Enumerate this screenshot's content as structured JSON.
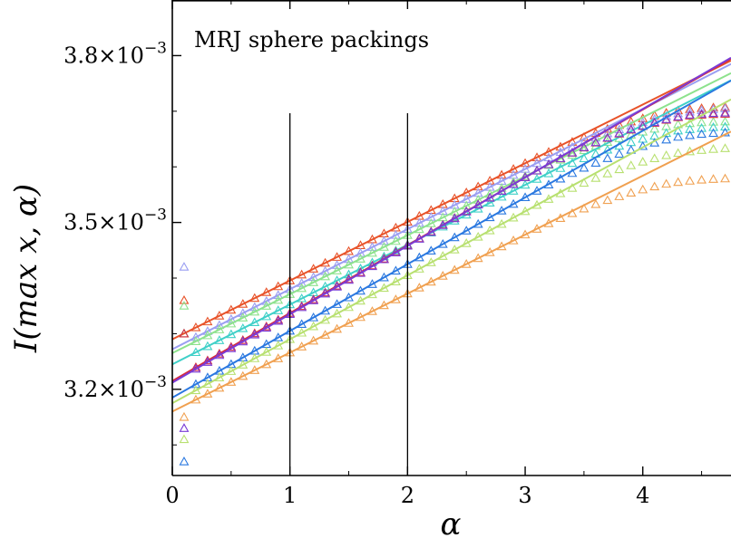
{
  "chart_data": {
    "type": "scatter",
    "annotation": "MRJ sphere packings",
    "xlabel": "α",
    "ylabel": "I(max x, α)",
    "xlim": [
      0,
      4.75
    ],
    "ylim": [
      3.045,
      3.9
    ],
    "xticks": [
      0,
      1,
      2,
      3,
      4
    ],
    "xtick_labels": [
      "0",
      "1",
      "2",
      "3",
      "4"
    ],
    "yticks": [
      3.2,
      3.5,
      3.8
    ],
    "ytick_mantissas": [
      "3.2",
      "3.5",
      "3.8"
    ],
    "ytick_exponent": "−3",
    "ytick_times": "×10",
    "y_scale_factor": "1e-3",
    "grid": false,
    "vertical_lines": [
      1,
      2
    ],
    "marker": "open-triangle",
    "series": [
      {
        "color": "#e8532a",
        "fit_intercept": 3.29,
        "fit_slope": 0.1055,
        "vertex": 4.28,
        "curvature": 0.025,
        "first_point": 3.36
      },
      {
        "color": "#9a9ef2",
        "fit_intercept": 3.272,
        "fit_slope": 0.108,
        "vertex": 4.32,
        "curvature": 0.024,
        "first_point": 3.42
      },
      {
        "color": "#8de28d",
        "fit_intercept": 3.265,
        "fit_slope": 0.106,
        "vertex": 4.26,
        "curvature": 0.026,
        "first_point": 3.35
      },
      {
        "color": "#3fd0c8",
        "fit_intercept": 3.245,
        "fit_slope": 0.1075,
        "vertex": 4.3,
        "curvature": 0.025,
        "first_point": 3.3
      },
      {
        "color": "#d92b3a",
        "fit_intercept": 3.215,
        "fit_slope": 0.122,
        "vertex": 4.33,
        "curvature": 0.03,
        "first_point": 3.3
      },
      {
        "color": "#7a3cd6",
        "fit_intercept": 3.212,
        "fit_slope": 0.123,
        "vertex": 4.35,
        "curvature": 0.03,
        "first_point": 3.13
      },
      {
        "color": "#2a78e0",
        "fit_intercept": 3.185,
        "fit_slope": 0.12,
        "vertex": 4.31,
        "curvature": 0.028,
        "first_point": 3.07
      },
      {
        "color": "#b8e070",
        "fit_intercept": 3.175,
        "fit_slope": 0.115,
        "vertex": 4.24,
        "curvature": 0.026,
        "first_point": 3.11
      },
      {
        "color": "#f0a050",
        "fit_intercept": 3.16,
        "fit_slope": 0.106,
        "vertex": 4.22,
        "curvature": 0.025,
        "first_point": 3.15
      }
    ]
  }
}
